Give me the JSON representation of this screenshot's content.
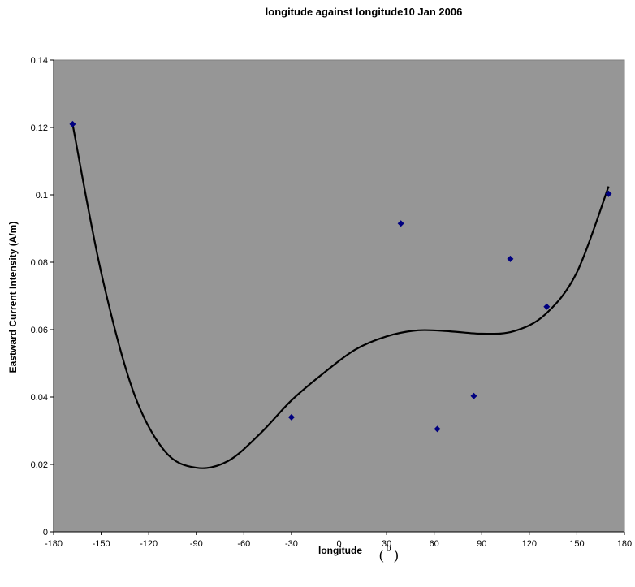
{
  "chart_data": {
    "type": "scatter",
    "title": "longitude against longitude10 Jan 2006",
    "xlabel": "longitude",
    "xunit_left": "(",
    "xunit_sup": "0",
    "xunit_right": ")",
    "ylabel": "Eastward Current  Intensity (A/m)",
    "xlim": [
      -180,
      180
    ],
    "ylim": [
      0,
      0.14
    ],
    "xticks": [
      -180,
      -150,
      -120,
      -90,
      -60,
      -30,
      0,
      30,
      60,
      90,
      120,
      150,
      180
    ],
    "yticks": [
      0,
      0.02,
      0.04,
      0.06,
      0.08,
      0.1,
      0.12,
      0.14
    ],
    "ytick_labels": [
      "0",
      "0.02",
      "0.04",
      "0.06",
      "0.08",
      "0.1",
      "0.12",
      "0.14"
    ],
    "grid": false,
    "plot_background": "#969696",
    "marker_color": "#000080",
    "trendline_color": "#000000",
    "points": [
      {
        "x": -168,
        "y": 0.121
      },
      {
        "x": -30,
        "y": 0.034
      },
      {
        "x": 39,
        "y": 0.0915
      },
      {
        "x": 62,
        "y": 0.0305
      },
      {
        "x": 85,
        "y": 0.0403
      },
      {
        "x": 108,
        "y": 0.081
      },
      {
        "x": 131,
        "y": 0.0668
      },
      {
        "x": 170,
        "y": 0.1003
      }
    ],
    "trendline": [
      {
        "x": -168,
        "y": 0.121
      },
      {
        "x": -150,
        "y": 0.077
      },
      {
        "x": -130,
        "y": 0.042
      },
      {
        "x": -110,
        "y": 0.024
      },
      {
        "x": -90,
        "y": 0.019
      },
      {
        "x": -70,
        "y": 0.021
      },
      {
        "x": -50,
        "y": 0.029
      },
      {
        "x": -30,
        "y": 0.039
      },
      {
        "x": -10,
        "y": 0.047
      },
      {
        "x": 10,
        "y": 0.054
      },
      {
        "x": 30,
        "y": 0.058
      },
      {
        "x": 50,
        "y": 0.0598
      },
      {
        "x": 70,
        "y": 0.0595
      },
      {
        "x": 90,
        "y": 0.0588
      },
      {
        "x": 110,
        "y": 0.0595
      },
      {
        "x": 130,
        "y": 0.0645
      },
      {
        "x": 150,
        "y": 0.077
      },
      {
        "x": 170,
        "y": 0.1025
      }
    ]
  }
}
